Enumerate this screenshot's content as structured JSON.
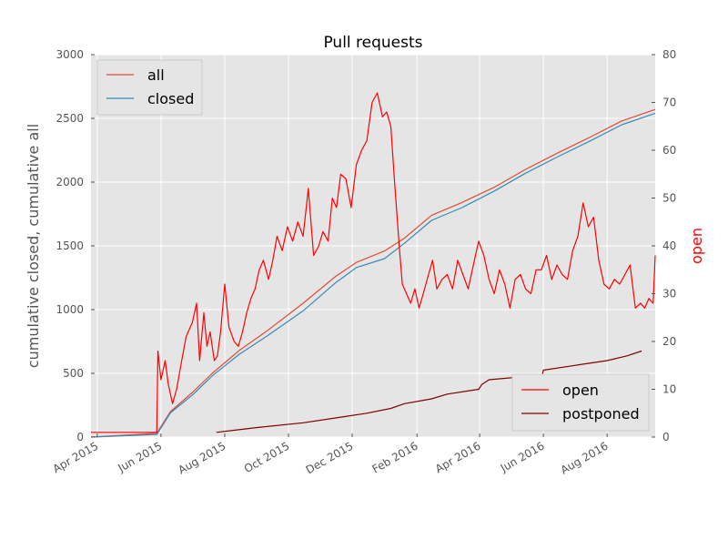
{
  "chart_data": {
    "type": "line",
    "title": "Pull requests",
    "ylabel_left": "cumulative closed, cumulative all",
    "ylabel_right": "open",
    "xlim": [
      "2015-03-26",
      "2016-09-16"
    ],
    "ylim_left": [
      0,
      3000
    ],
    "ylim_right": [
      0,
      80
    ],
    "grid": true,
    "x_ticks": [
      {
        "date": "2015-04-01",
        "label": "Apr 2015"
      },
      {
        "date": "2015-06-01",
        "label": "Jun 2015"
      },
      {
        "date": "2015-08-01",
        "label": "Aug 2015"
      },
      {
        "date": "2015-10-01",
        "label": "Oct 2015"
      },
      {
        "date": "2015-12-01",
        "label": "Dec 2015"
      },
      {
        "date": "2016-02-01",
        "label": "Feb 2016"
      },
      {
        "date": "2016-04-01",
        "label": "Apr 2016"
      },
      {
        "date": "2016-06-01",
        "label": "Jun 2016"
      },
      {
        "date": "2016-08-01",
        "label": "Aug 2016"
      }
    ],
    "y_ticks_left": [
      "0",
      "500",
      "1000",
      "1500",
      "2000",
      "2500",
      "3000"
    ],
    "y_ticks_right": [
      "0",
      "10",
      "20",
      "30",
      "40",
      "50",
      "60",
      "70",
      "80"
    ],
    "legend_top": {
      "placement": "top-left",
      "entries": [
        {
          "name": "all",
          "color": "#e24a33"
        },
        {
          "name": "closed",
          "color": "#348abd"
        }
      ]
    },
    "legend_bottom": {
      "placement": "bottom-right",
      "entries": [
        {
          "name": "open",
          "color": "#ff0000"
        },
        {
          "name": "postponed",
          "color": "#800000"
        }
      ]
    },
    "series": [
      {
        "name": "all",
        "axis": "left",
        "color": "#e24a33",
        "x": [
          "2015-03-26",
          "2015-05-28",
          "2015-06-10",
          "2015-07-01",
          "2015-07-20",
          "2015-08-15",
          "2015-09-10",
          "2015-10-15",
          "2015-11-15",
          "2015-12-05",
          "2016-01-01",
          "2016-01-20",
          "2016-02-15",
          "2016-03-15",
          "2016-04-15",
          "2016-05-15",
          "2016-06-15",
          "2016-07-15",
          "2016-08-15",
          "2016-09-16"
        ],
        "y": [
          0,
          30,
          200,
          350,
          500,
          680,
          830,
          1050,
          1260,
          1370,
          1460,
          1560,
          1740,
          1840,
          1960,
          2100,
          2230,
          2350,
          2480,
          2570
        ]
      },
      {
        "name": "closed",
        "axis": "left",
        "color": "#348abd",
        "x": [
          "2015-03-26",
          "2015-05-28",
          "2015-06-10",
          "2015-07-01",
          "2015-07-20",
          "2015-08-15",
          "2015-09-10",
          "2015-10-15",
          "2015-11-15",
          "2015-12-05",
          "2016-01-01",
          "2016-01-20",
          "2016-02-15",
          "2016-03-15",
          "2016-04-15",
          "2016-05-15",
          "2016-06-15",
          "2016-07-15",
          "2016-08-15",
          "2016-09-16"
        ],
        "y": [
          0,
          20,
          190,
          330,
          480,
          650,
          790,
          990,
          1210,
          1330,
          1400,
          1520,
          1700,
          1800,
          1930,
          2070,
          2200,
          2320,
          2450,
          2540
        ]
      },
      {
        "name": "open",
        "axis": "right",
        "color": "#ff0000",
        "x": [
          "2015-03-26",
          "2015-05-28",
          "2015-05-29",
          "2015-06-01",
          "2015-06-05",
          "2015-06-08",
          "2015-06-12",
          "2015-06-16",
          "2015-06-20",
          "2015-06-25",
          "2015-07-01",
          "2015-07-05",
          "2015-07-08",
          "2015-07-12",
          "2015-07-15",
          "2015-07-18",
          "2015-07-22",
          "2015-07-25",
          "2015-07-28",
          "2015-08-01",
          "2015-08-05",
          "2015-08-10",
          "2015-08-14",
          "2015-08-18",
          "2015-08-22",
          "2015-08-26",
          "2015-08-30",
          "2015-09-03",
          "2015-09-07",
          "2015-09-12",
          "2015-09-16",
          "2015-09-20",
          "2015-09-25",
          "2015-09-30",
          "2015-10-05",
          "2015-10-10",
          "2015-10-15",
          "2015-10-20",
          "2015-10-25",
          "2015-10-30",
          "2015-11-03",
          "2015-11-08",
          "2015-11-12",
          "2015-11-16",
          "2015-11-20",
          "2015-11-25",
          "2015-11-30",
          "2015-12-05",
          "2015-12-10",
          "2015-12-15",
          "2015-12-20",
          "2015-12-25",
          "2015-12-30",
          "2016-01-03",
          "2016-01-07",
          "2016-01-10",
          "2016-01-13",
          "2016-01-15",
          "2016-01-18",
          "2016-01-22",
          "2016-01-26",
          "2016-01-30",
          "2016-02-03",
          "2016-02-07",
          "2016-02-12",
          "2016-02-16",
          "2016-02-20",
          "2016-02-25",
          "2016-03-01",
          "2016-03-06",
          "2016-03-11",
          "2016-03-16",
          "2016-03-21",
          "2016-03-26",
          "2016-03-31",
          "2016-04-05",
          "2016-04-10",
          "2016-04-15",
          "2016-04-20",
          "2016-04-25",
          "2016-04-30",
          "2016-05-05",
          "2016-05-10",
          "2016-05-15",
          "2016-05-20",
          "2016-05-25",
          "2016-05-30",
          "2016-06-04",
          "2016-06-09",
          "2016-06-14",
          "2016-06-19",
          "2016-06-24",
          "2016-06-29",
          "2016-07-04",
          "2016-07-09",
          "2016-07-14",
          "2016-07-19",
          "2016-07-24",
          "2016-07-29",
          "2016-08-03",
          "2016-08-08",
          "2016-08-13",
          "2016-08-18",
          "2016-08-23",
          "2016-08-28",
          "2016-09-02",
          "2016-09-06",
          "2016-09-10",
          "2016-09-14",
          "2016-09-16"
        ],
        "y": [
          1,
          1,
          18,
          12,
          16,
          11,
          7,
          10,
          15,
          21,
          24,
          28,
          16,
          26,
          19,
          22,
          16,
          17,
          22,
          32,
          23,
          20,
          19,
          22,
          26,
          29,
          31,
          35,
          37,
          33,
          37,
          42,
          39,
          44,
          41,
          45,
          42,
          52,
          38,
          40,
          43,
          41,
          50,
          48,
          55,
          54,
          48,
          57,
          60,
          62,
          70,
          72,
          67,
          68,
          65,
          55,
          46,
          40,
          32,
          30,
          28,
          31,
          27,
          30,
          34,
          37,
          31,
          33,
          34,
          31,
          37,
          34,
          31,
          36,
          41,
          38,
          33,
          30,
          35,
          32,
          27,
          33,
          34,
          31,
          30,
          35,
          35,
          38,
          33,
          36,
          34,
          33,
          39,
          42,
          49,
          44,
          46,
          37,
          32,
          31,
          33,
          32,
          34,
          36,
          27,
          28,
          27,
          29,
          28,
          38
        ]
      },
      {
        "name": "postponed",
        "axis": "right",
        "color": "#800000",
        "x": [
          "2015-07-24",
          "2015-09-01",
          "2015-10-15",
          "2015-11-15",
          "2015-12-15",
          "2016-01-07",
          "2016-01-20",
          "2016-02-15",
          "2016-03-01",
          "2016-03-31",
          "2016-04-03",
          "2016-04-10",
          "2016-05-31",
          "2016-06-01",
          "2016-07-01",
          "2016-08-01",
          "2016-08-20",
          "2016-09-03"
        ],
        "y": [
          1,
          2,
          3,
          4,
          5,
          6,
          7,
          8,
          9,
          10,
          11,
          12,
          13,
          14,
          15,
          16,
          17,
          18
        ]
      }
    ]
  }
}
